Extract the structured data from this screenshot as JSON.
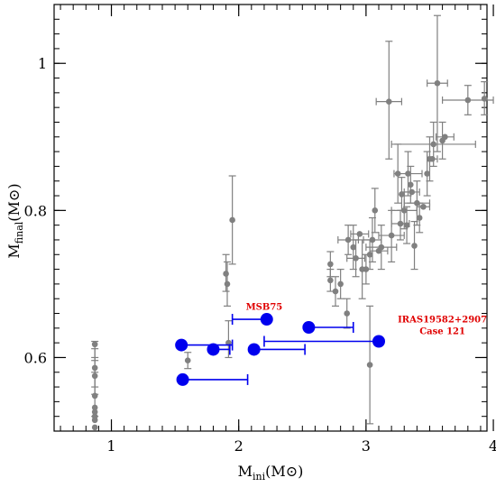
{
  "chart_data": {
    "type": "scatter",
    "title": "",
    "xlabel": {
      "main": "M",
      "sub": "ini",
      "unit": "(M⊙)"
    },
    "ylabel": {
      "main": "M",
      "sub": "final",
      "unit": "(M⊙)"
    },
    "xlim": [
      0.55,
      3.95
    ],
    "ylim": [
      0.5,
      1.08
    ],
    "x_major_ticks": [
      1,
      2,
      3,
      4
    ],
    "y_major_ticks": [
      0.6,
      0.8,
      1.0
    ],
    "x_tick_labels": [
      "1",
      "2",
      "3",
      "4"
    ],
    "y_tick_labels": [
      "0.6",
      "0.8",
      "1"
    ],
    "grid": false,
    "colors": {
      "gray_series": "#808080",
      "blue_series": "#0000ee",
      "annotation": "#e00000",
      "axis": "#000000"
    },
    "annotations": [
      {
        "text": "MSB75",
        "x": 2.2,
        "y": 0.665
      },
      {
        "text": "IRAS19582+2907",
        "x": 3.6,
        "y": 0.648
      },
      {
        "text": "Case 121",
        "x": 3.6,
        "y": 0.632
      }
    ],
    "series": [
      {
        "marker": "small-gray-dot",
        "points": [
          {
            "x": 0.87,
            "y": 0.618,
            "yerr": [
              0.596,
              0.622
            ]
          },
          {
            "x": 0.87,
            "y": 0.586,
            "yerr": [
              0.56,
              0.612
            ]
          },
          {
            "x": 0.87,
            "y": 0.575,
            "yerr": [
              0.55,
              0.6
            ]
          },
          {
            "x": 0.87,
            "y": 0.548,
            "yerr": [
              0.52,
              0.58
            ]
          },
          {
            "x": 0.87,
            "y": 0.532
          },
          {
            "x": 0.87,
            "y": 0.526
          },
          {
            "x": 0.87,
            "y": 0.52
          },
          {
            "x": 0.87,
            "y": 0.515
          },
          {
            "x": 0.87,
            "y": 0.505
          },
          {
            "x": 1.6,
            "y": 0.596,
            "yerr": [
              0.585,
              0.607
            ]
          },
          {
            "x": 1.9,
            "y": 0.714,
            "yerr": [
              0.69,
              0.74
            ]
          },
          {
            "x": 1.91,
            "y": 0.7,
            "yerr": [
              0.67,
              0.73
            ]
          },
          {
            "x": 1.92,
            "y": 0.62,
            "yerr": [
              0.6,
              0.65
            ]
          },
          {
            "x": 1.95,
            "y": 0.787,
            "yerr": [
              0.727,
              0.847
            ]
          },
          {
            "x": 2.72,
            "y": 0.727,
            "yerr": [
              0.71,
              0.744
            ]
          },
          {
            "x": 2.72,
            "y": 0.705,
            "yerr": [
              0.69,
              0.72
            ]
          },
          {
            "x": 2.76,
            "y": 0.69,
            "yerr": [
              0.67,
              0.71
            ]
          },
          {
            "x": 2.8,
            "y": 0.7,
            "yerr": [
              0.68,
              0.72
            ]
          },
          {
            "x": 2.85,
            "y": 0.66,
            "yerr": [
              0.64,
              0.68
            ]
          },
          {
            "x": 2.86,
            "y": 0.76,
            "xerr": [
              2.78,
              2.94
            ],
            "yerr": [
              0.74,
              0.78
            ]
          },
          {
            "x": 2.9,
            "y": 0.75,
            "yerr": [
              0.72,
              0.78
            ]
          },
          {
            "x": 2.92,
            "y": 0.735,
            "xerr": [
              2.85,
              2.99
            ],
            "yerr": [
              0.71,
              0.76
            ]
          },
          {
            "x": 2.95,
            "y": 0.768,
            "xerr": [
              2.88,
              3.02
            ]
          },
          {
            "x": 2.97,
            "y": 0.72,
            "yerr": [
              0.68,
              0.76
            ]
          },
          {
            "x": 3.0,
            "y": 0.72,
            "yerr": [
              0.7,
              0.74
            ]
          },
          {
            "x": 3.03,
            "y": 0.59,
            "yerr": [
              0.51,
              0.67
            ]
          },
          {
            "x": 3.03,
            "y": 0.74,
            "yerr": [
              0.72,
              0.76
            ]
          },
          {
            "x": 3.05,
            "y": 0.76,
            "xerr": [
              2.98,
              3.12
            ],
            "yerr": [
              0.73,
              0.79
            ]
          },
          {
            "x": 3.07,
            "y": 0.8,
            "yerr": [
              0.77,
              0.83
            ]
          },
          {
            "x": 3.1,
            "y": 0.745,
            "xerr": [
              3.03,
              3.17
            ]
          },
          {
            "x": 3.12,
            "y": 0.75,
            "xerr": [
              3.0,
              3.24
            ],
            "yerr": [
              0.72,
              0.78
            ]
          },
          {
            "x": 3.18,
            "y": 0.948,
            "xerr": [
              3.08,
              3.28
            ],
            "yerr": [
              0.87,
              1.03
            ]
          },
          {
            "x": 3.2,
            "y": 0.766,
            "xerr": [
              3.1,
              3.3
            ],
            "yerr": [
              0.73,
              0.8
            ]
          },
          {
            "x": 3.25,
            "y": 0.85,
            "yerr": [
              0.81,
              0.89
            ]
          },
          {
            "x": 3.27,
            "y": 0.782,
            "xerr": [
              3.2,
              3.34
            ],
            "yerr": [
              0.76,
              0.8
            ]
          },
          {
            "x": 3.28,
            "y": 0.822,
            "yerr": [
              0.8,
              0.845
            ]
          },
          {
            "x": 3.3,
            "y": 0.8,
            "xerr": [
              3.2,
              3.4
            ],
            "yerr": [
              0.775,
              0.825
            ]
          },
          {
            "x": 3.32,
            "y": 0.78,
            "yerr": [
              0.755,
              0.805
            ]
          },
          {
            "x": 3.33,
            "y": 0.85,
            "xerr": [
              3.22,
              3.44
            ],
            "yerr": [
              0.82,
              0.88
            ]
          },
          {
            "x": 3.35,
            "y": 0.835,
            "yerr": [
              0.81,
              0.86
            ]
          },
          {
            "x": 3.36,
            "y": 0.825,
            "xerr": [
              3.3,
              3.42
            ]
          },
          {
            "x": 3.38,
            "y": 0.752,
            "yerr": [
              0.72,
              0.785
            ]
          },
          {
            "x": 3.4,
            "y": 0.81,
            "xerr": [
              3.3,
              3.5
            ],
            "yerr": [
              0.78,
              0.84
            ]
          },
          {
            "x": 3.42,
            "y": 0.79,
            "yerr": [
              0.77,
              0.81
            ]
          },
          {
            "x": 3.45,
            "y": 0.805,
            "xerr": [
              3.4,
              3.5
            ]
          },
          {
            "x": 3.48,
            "y": 0.85,
            "yerr": [
              0.82,
              0.88
            ]
          },
          {
            "x": 3.5,
            "y": 0.87,
            "yerr": [
              0.84,
              0.9
            ]
          },
          {
            "x": 3.52,
            "y": 0.87,
            "xerr": [
              3.48,
              3.56
            ]
          },
          {
            "x": 3.53,
            "y": 0.89,
            "xerr": [
              3.2,
              3.86
            ],
            "yerr": [
              0.86,
              0.92
            ]
          },
          {
            "x": 3.56,
            "y": 0.973,
            "xerr": [
              3.48,
              3.64
            ],
            "yerr": [
              0.88,
              1.065
            ]
          },
          {
            "x": 3.6,
            "y": 0.895,
            "yerr": [
              0.87,
              0.92
            ]
          },
          {
            "x": 3.62,
            "y": 0.9,
            "xerr": [
              3.55,
              3.69
            ]
          },
          {
            "x": 3.8,
            "y": 0.95,
            "xerr": [
              3.6,
              4.0
            ],
            "yerr": [
              0.93,
              0.97
            ]
          },
          {
            "x": 3.93,
            "y": 0.952,
            "yerr": [
              0.93,
              0.975
            ]
          }
        ]
      },
      {
        "marker": "large-blue-dot",
        "points": [
          {
            "x": 1.55,
            "y": 0.617,
            "xerr": [
              1.55,
              1.95
            ]
          },
          {
            "x": 1.56,
            "y": 0.57,
            "xerr": [
              1.56,
              2.07
            ]
          },
          {
            "x": 1.8,
            "y": 0.611,
            "xerr": [
              1.8,
              1.93
            ]
          },
          {
            "x": 2.12,
            "y": 0.611,
            "xerr": [
              2.12,
              2.52
            ]
          },
          {
            "x": 2.22,
            "y": 0.652,
            "xerr": [
              1.95,
              2.22
            ]
          },
          {
            "x": 2.55,
            "y": 0.641,
            "xerr": [
              2.55,
              2.9
            ]
          },
          {
            "x": 3.1,
            "y": 0.622,
            "xerr": [
              2.2,
              3.1
            ]
          }
        ]
      }
    ]
  }
}
